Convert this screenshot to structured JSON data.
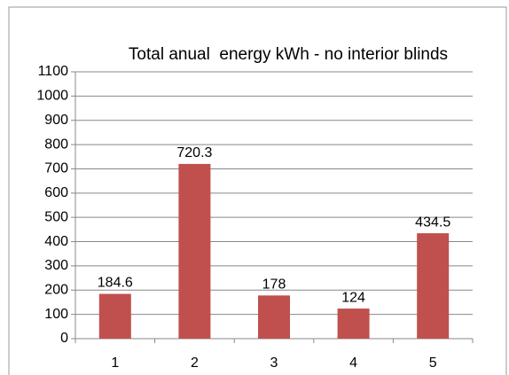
{
  "chart_data": {
    "type": "bar",
    "title": "Total anual  energy kWh - no interior blinds",
    "categories": [
      "1",
      "2",
      "3",
      "4",
      "5"
    ],
    "values": [
      184.6,
      720.3,
      178,
      124,
      434.5
    ],
    "color": "#c0504d",
    "ylim": [
      0,
      1100
    ],
    "yticks": [
      0,
      100,
      200,
      300,
      400,
      500,
      600,
      700,
      800,
      900,
      1000,
      1100
    ],
    "grid": true
  }
}
